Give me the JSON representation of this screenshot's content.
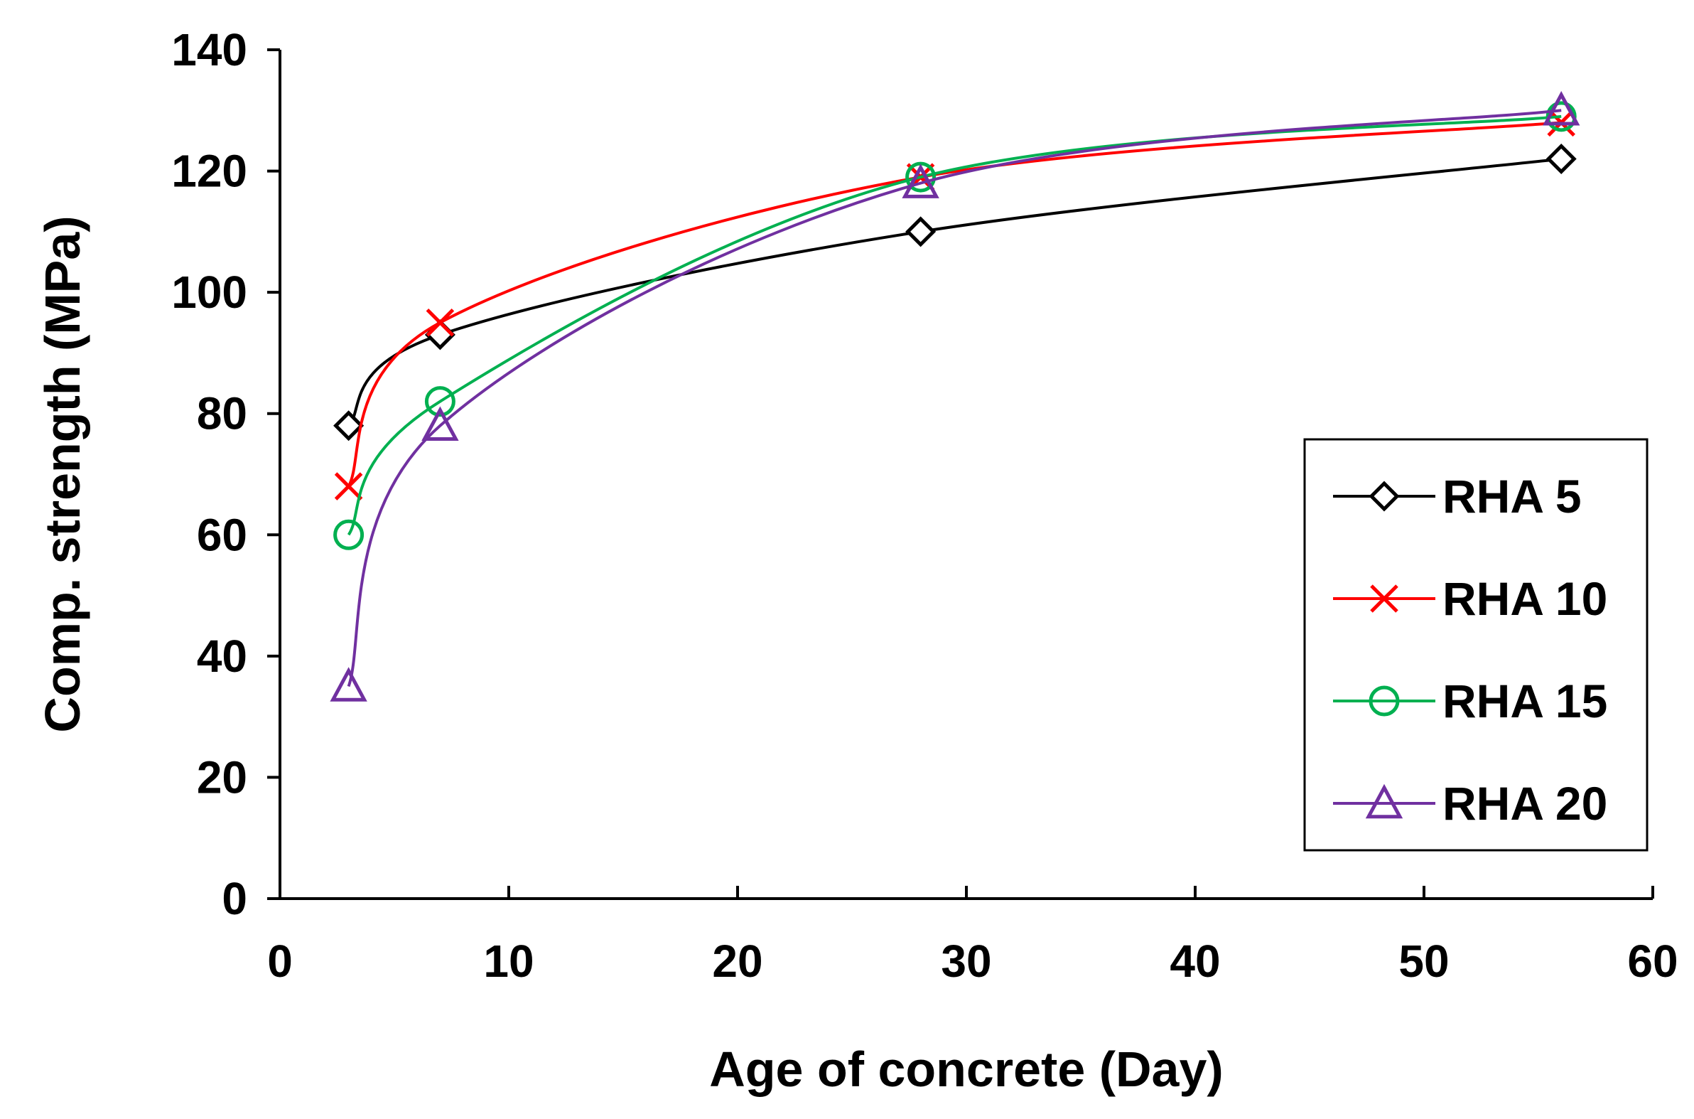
{
  "chart_data": {
    "type": "line",
    "xlabel": "Age of concrete (Day)",
    "ylabel": "Comp. strength (MPa)",
    "xlim": [
      0,
      60
    ],
    "ylim": [
      0,
      140
    ],
    "xticks": [
      0,
      10,
      20,
      30,
      40,
      50,
      60
    ],
    "yticks": [
      0,
      20,
      40,
      60,
      80,
      100,
      120,
      140
    ],
    "grid": false,
    "legend_position": "right",
    "series": [
      {
        "name": "RHA 5",
        "color": "#000000",
        "marker": "diamond",
        "x": [
          3,
          7,
          28,
          56
        ],
        "y": [
          78,
          93,
          110,
          122
        ]
      },
      {
        "name": "RHA 10",
        "color": "#ff0000",
        "marker": "x",
        "x": [
          3,
          7,
          28,
          56
        ],
        "y": [
          68,
          95,
          119,
          128
        ]
      },
      {
        "name": "RHA 15",
        "color": "#00b050",
        "marker": "circle",
        "x": [
          3,
          7,
          28,
          56
        ],
        "y": [
          60,
          82,
          119,
          129
        ]
      },
      {
        "name": "RHA 20",
        "color": "#7030a0",
        "marker": "triangle",
        "x": [
          3,
          7,
          28,
          56
        ],
        "y": [
          35,
          78,
          118,
          130
        ]
      }
    ]
  }
}
